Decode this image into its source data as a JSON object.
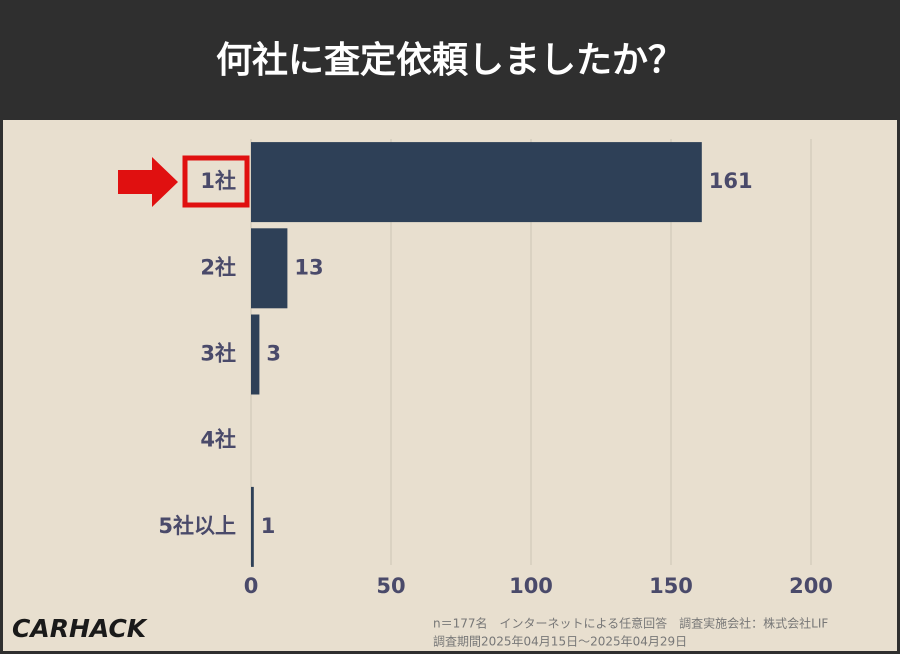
{
  "chart_data": {
    "type": "bar",
    "orientation": "horizontal",
    "title": "何社に査定依頼しましたか？",
    "categories": [
      "1社",
      "2社",
      "3社",
      "4社",
      "5社以上"
    ],
    "values": [
      161,
      13,
      3,
      null,
      1
    ],
    "color": "#2e4057",
    "xlim": [
      0,
      225
    ],
    "xticks": [
      0,
      50,
      100,
      150,
      200
    ],
    "grid": true,
    "notes": [
      "n＝177名　インターネットによる任意回答　調査実施会社：株式会社LIF",
      "調査期間2025年04月15日〜2025年04月29日"
    ],
    "logo": "CARHACK"
  }
}
